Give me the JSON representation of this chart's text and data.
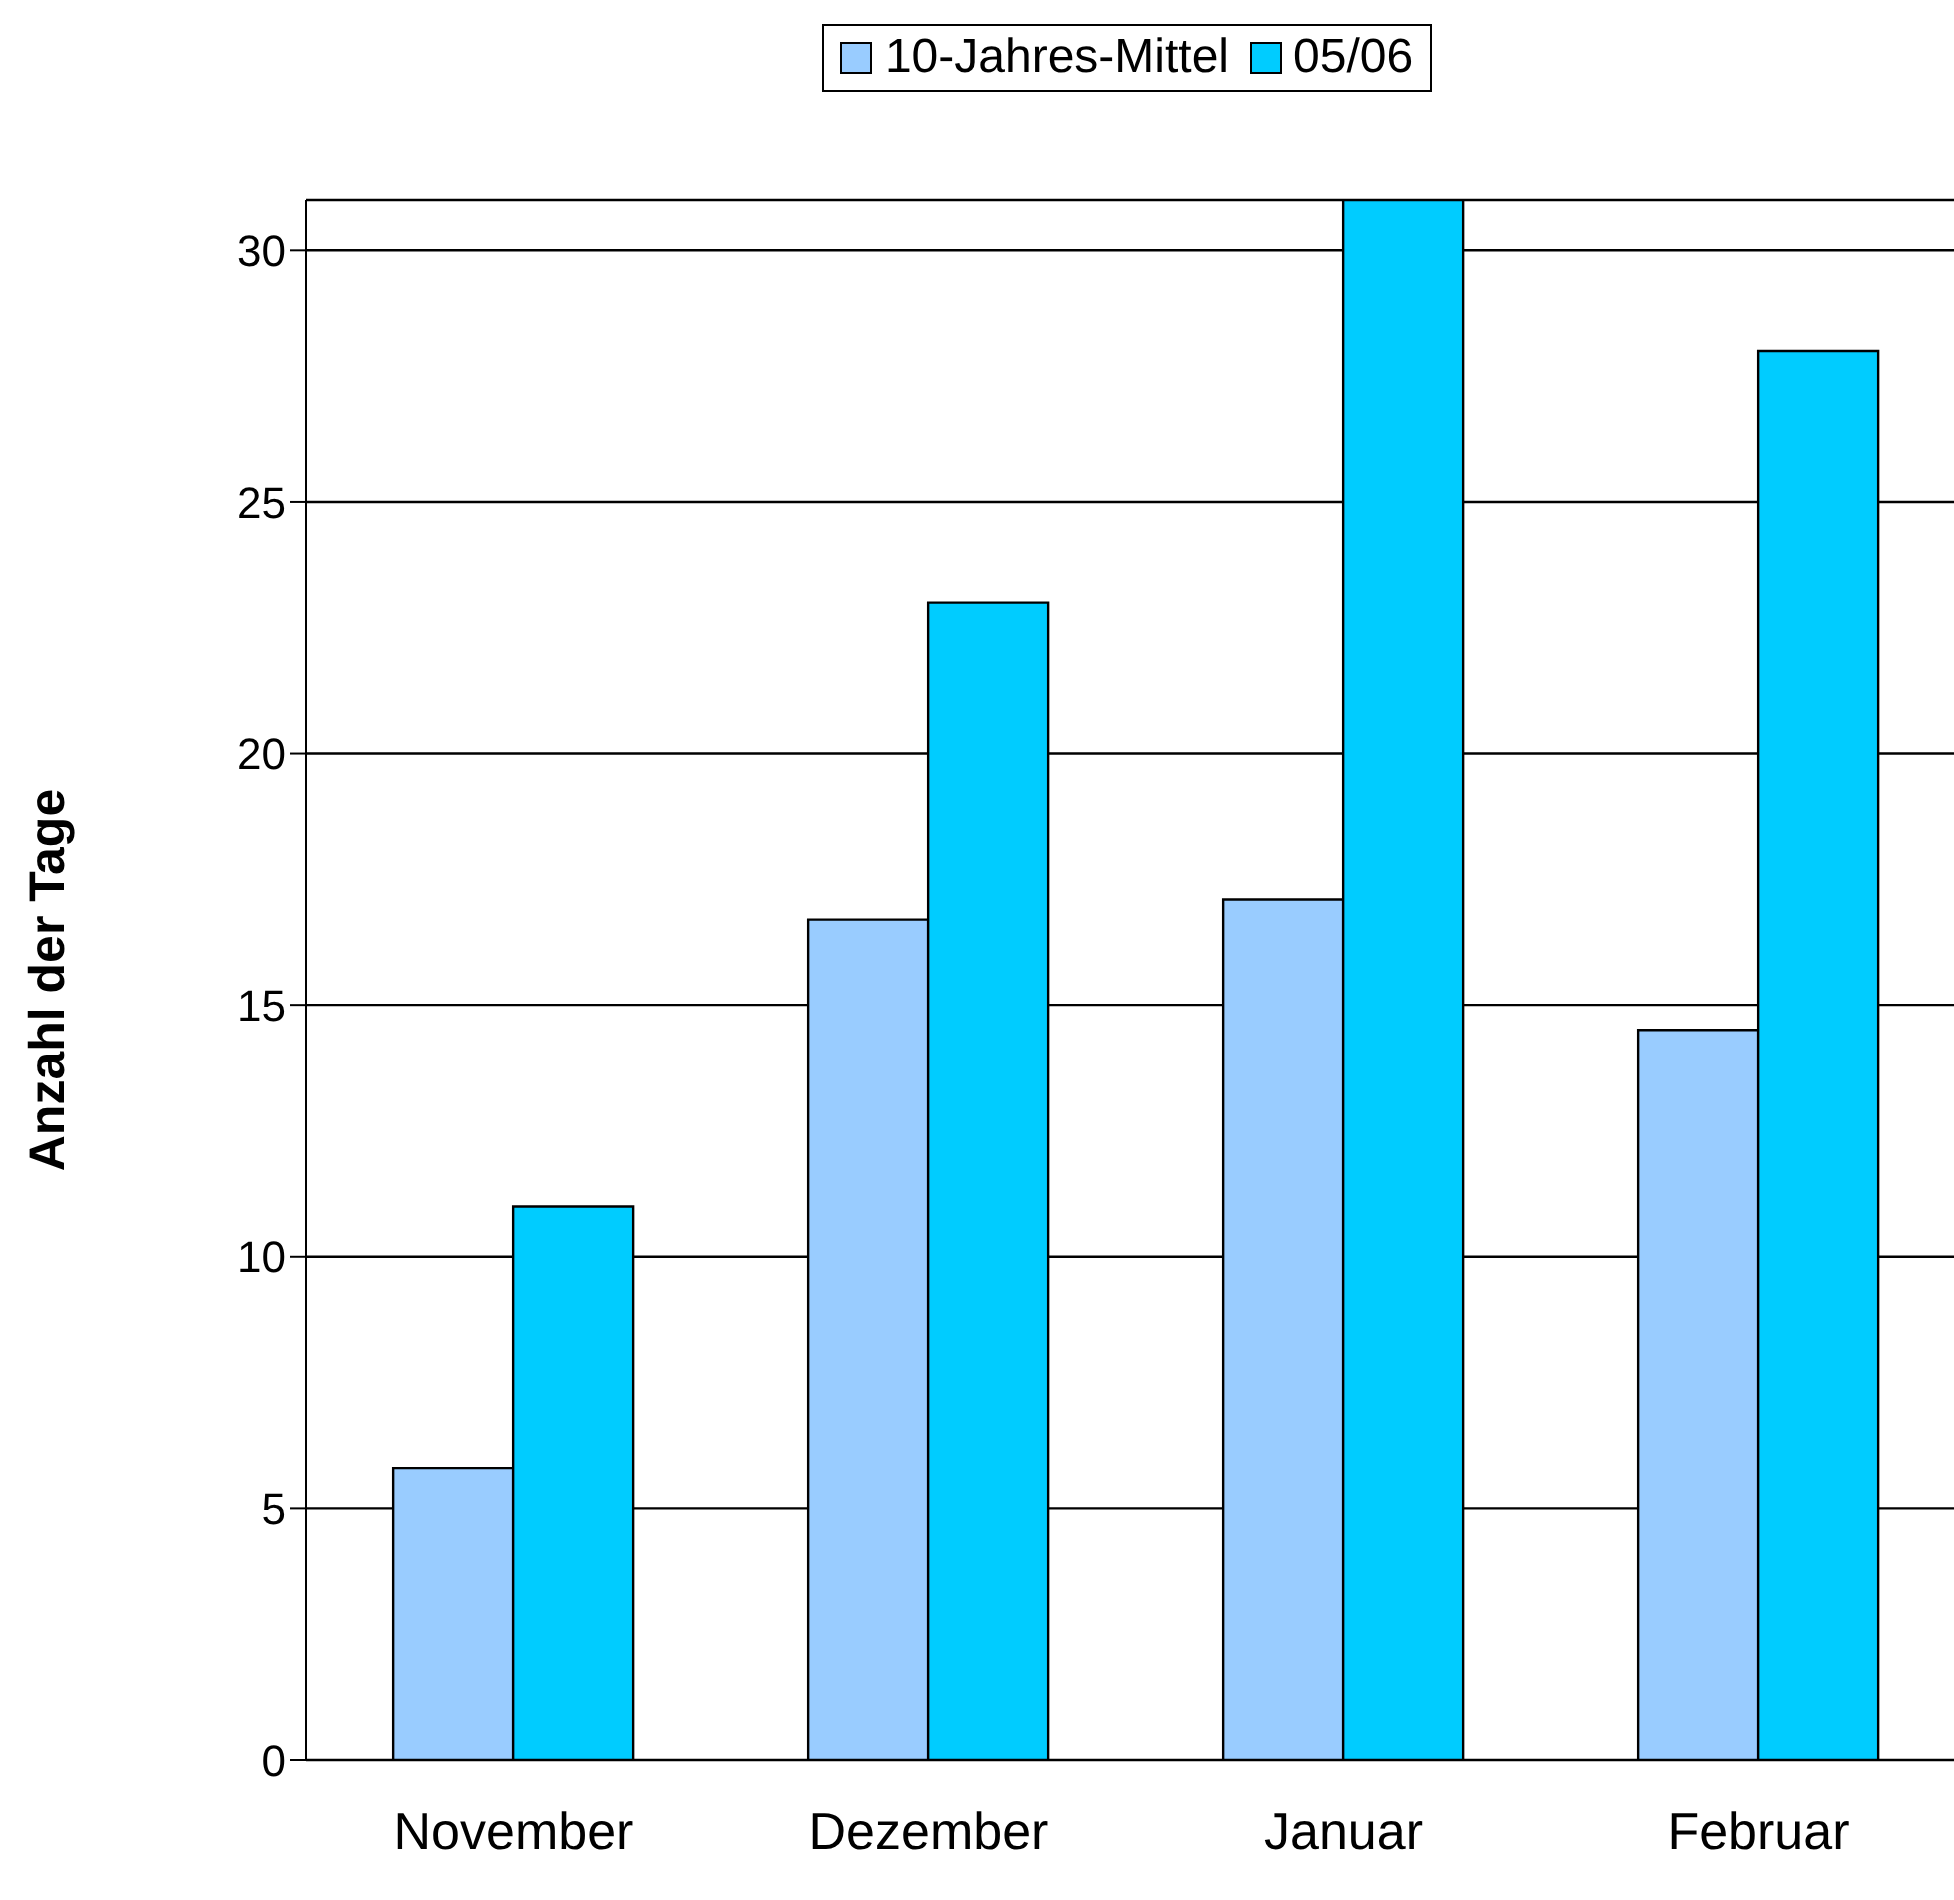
{
  "chart_data": {
    "type": "bar",
    "ylabel": "Anzahl der Tage",
    "categories": [
      "November",
      "Dezember",
      "Januar",
      "Februar"
    ],
    "series": [
      {
        "name": "10-Jahres-Mittel",
        "color": "#99ccff",
        "values": [
          5.8,
          16.7,
          17.1,
          14.5
        ]
      },
      {
        "name": "05/06",
        "color": "#00ccff",
        "values": [
          11.0,
          23.0,
          31.0,
          28.0
        ]
      }
    ],
    "ylim": [
      0,
      31
    ],
    "yticks": [
      0,
      5,
      10,
      15,
      20,
      25,
      30
    ],
    "grid": "y",
    "legend": "top"
  }
}
